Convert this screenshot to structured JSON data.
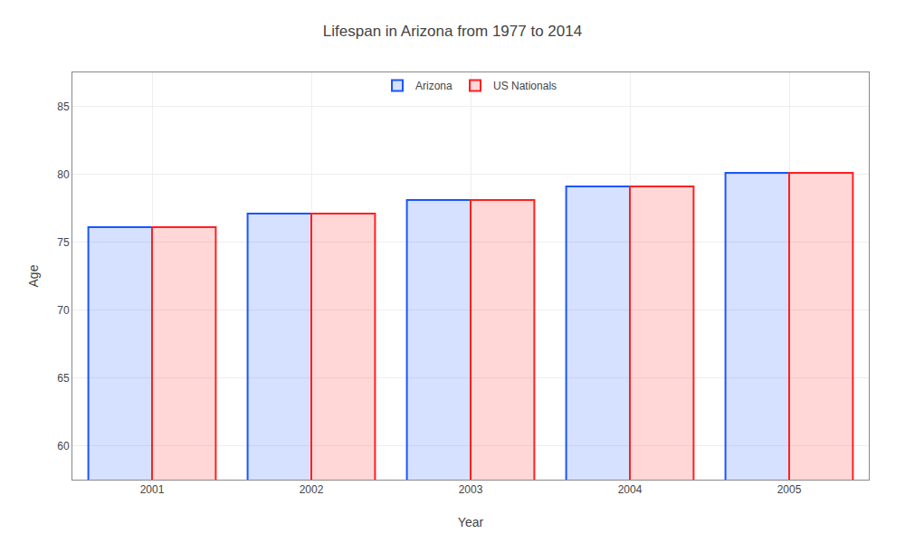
{
  "chart_data": {
    "type": "bar",
    "title": "Lifespan in Arizona from 1977 to 2014",
    "xlabel": "Year",
    "ylabel": "Age",
    "categories": [
      "2001",
      "2002",
      "2003",
      "2004",
      "2005"
    ],
    "series": [
      {
        "name": "Arizona",
        "color": "#1a55ff",
        "values": [
          76.1,
          77.1,
          78.1,
          79.1,
          80.1
        ]
      },
      {
        "name": "US Nationals",
        "color": "#ff2020",
        "values": [
          76.1,
          77.1,
          78.1,
          79.1,
          80.1
        ]
      }
    ],
    "ylim": [
      57.5,
      87.5
    ],
    "yticks": [
      60,
      65,
      70,
      75,
      80,
      85
    ],
    "grid": true,
    "legend": "upper center"
  }
}
